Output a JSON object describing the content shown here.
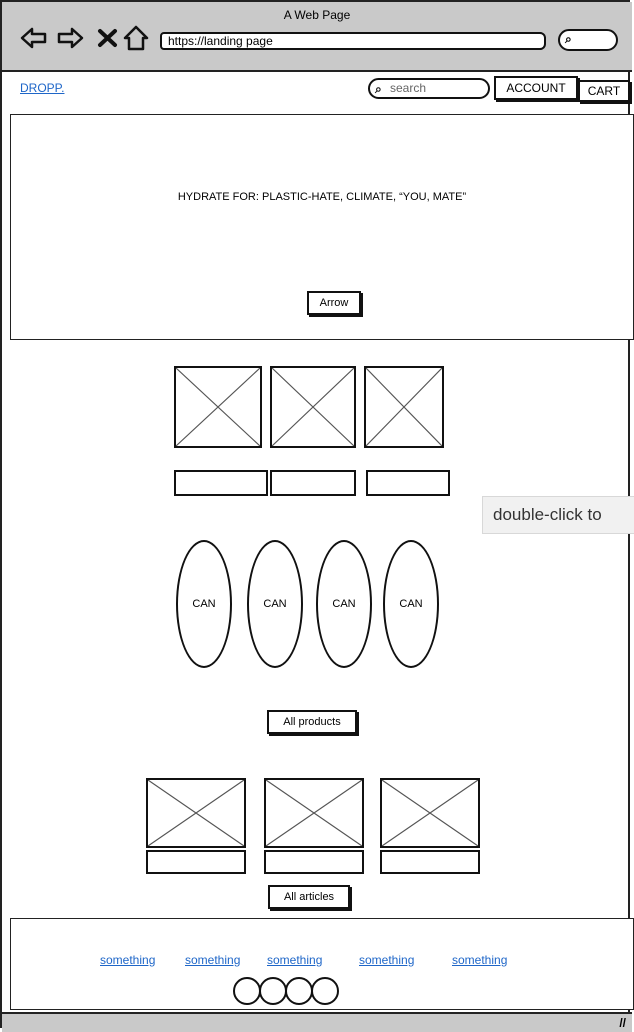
{
  "browser": {
    "title": "A Web Page",
    "url": "https://landing page",
    "search_icon": "search-icon"
  },
  "header": {
    "logo": "DROPP.",
    "search_placeholder": "search",
    "account_label": "ACCOUNT",
    "cart_label": "CART"
  },
  "hero": {
    "headline": "HYDRATE FOR: PLASTIC-HATE, CLIMATE, “YOU, MATE”",
    "button_label": "Arrow"
  },
  "products": {
    "cans": [
      {
        "label": "CAN"
      },
      {
        "label": "CAN"
      },
      {
        "label": "CAN"
      },
      {
        "label": "CAN"
      }
    ],
    "all_button": "All products"
  },
  "articles": {
    "all_button": "All articles"
  },
  "tooltip": "double-click to",
  "footer": {
    "links": [
      {
        "label": "something"
      },
      {
        "label": "something"
      },
      {
        "label": "something"
      },
      {
        "label": "something"
      },
      {
        "label": "something"
      }
    ]
  }
}
